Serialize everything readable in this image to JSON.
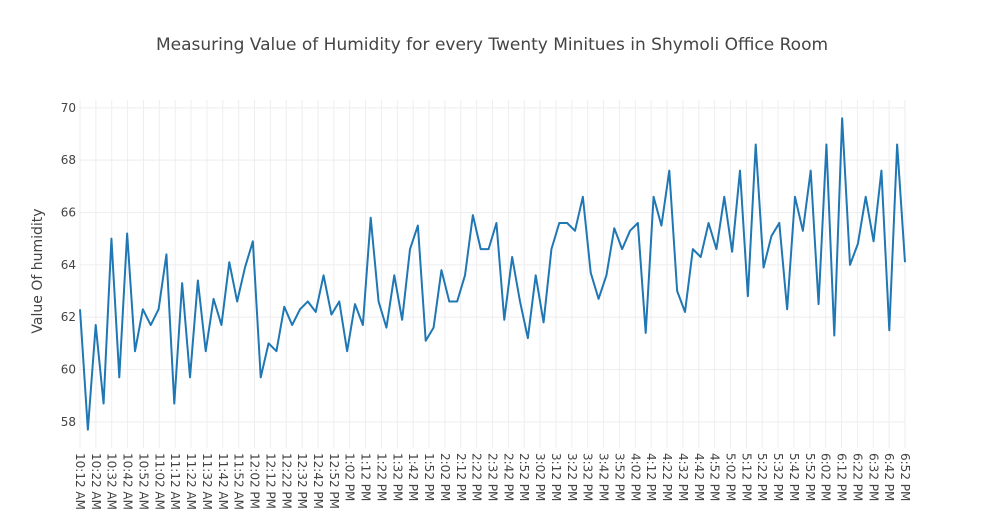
{
  "chart_data": {
    "type": "line",
    "title": "Measuring Value of Humidity for every Twenty Minitues in Shymoli Office Room",
    "xlabel": "",
    "ylabel": "Value Of humidity",
    "ylim": [
      57,
      70.3
    ],
    "yticks": [
      58,
      60,
      62,
      64,
      66,
      68,
      70
    ],
    "grid": true,
    "line_color": "#1f77b4",
    "x_tick_labels": [
      "10:12 AM",
      "10:22 AM",
      "10:32 AM",
      "10:42 AM",
      "10:52 AM",
      "11:02 AM",
      "11:12 AM",
      "11:22 AM",
      "11:32 AM",
      "11:42 AM",
      "11:52 AM",
      "12:02 PM",
      "12:12 PM",
      "12:22 PM",
      "12:32 PM",
      "12:42 PM",
      "12:52 PM",
      "1:02 PM",
      "1:12 PM",
      "1:22 PM",
      "1:32 PM",
      "1:42 PM",
      "1:52 PM",
      "2:02 PM",
      "2:12 PM",
      "2:22 PM",
      "2:32 PM",
      "2:42 PM",
      "2:52 PM",
      "3:02 PM",
      "3:12 PM",
      "3:22 PM",
      "3:32 PM",
      "3:42 PM",
      "3:52 PM",
      "4:02 PM",
      "4:12 PM",
      "4:22 PM",
      "4:32 PM",
      "4:42 PM",
      "4:52 PM",
      "5:02 PM",
      "5:12 PM",
      "5:22 PM",
      "5:32 PM",
      "5:42 PM",
      "5:52 PM",
      "6:02 PM",
      "6:12 PM",
      "6:22 PM",
      "6:32 PM",
      "6:42 PM",
      "6:52 PM"
    ],
    "series": [
      {
        "values": [
          62.3,
          57.7,
          61.7,
          58.7,
          65.0,
          59.7,
          65.2,
          60.7,
          62.3,
          61.7,
          62.3,
          64.4,
          58.7,
          63.3,
          59.7,
          63.4,
          60.7,
          62.7,
          61.7,
          64.1,
          62.6,
          63.9,
          64.9,
          59.7,
          61.0,
          60.7,
          62.4,
          61.7,
          62.3,
          62.6,
          62.2,
          63.6,
          62.1,
          62.6,
          60.7,
          62.5,
          61.7,
          65.8,
          62.6,
          61.6,
          63.6,
          61.9,
          64.6,
          65.5,
          61.1,
          61.6,
          63.8,
          62.6,
          62.6,
          63.6,
          65.9,
          64.6,
          64.6,
          65.6,
          61.9,
          64.3,
          62.6,
          61.2,
          63.6,
          61.8,
          64.6,
          65.6,
          65.6,
          65.3,
          66.6,
          63.7,
          62.7,
          63.6,
          65.4,
          64.6,
          65.3,
          65.6,
          61.4,
          66.6,
          65.5,
          67.6,
          63.0,
          62.2,
          64.6,
          64.3,
          65.6,
          64.6,
          66.6,
          64.5,
          67.6,
          62.8,
          68.6,
          63.9,
          65.1,
          65.6,
          62.3,
          66.6,
          65.3,
          67.6,
          62.5,
          68.6,
          61.3,
          69.6,
          64.0,
          64.8,
          66.6,
          64.9,
          67.6,
          61.5,
          68.6,
          64.1
        ]
      }
    ]
  }
}
